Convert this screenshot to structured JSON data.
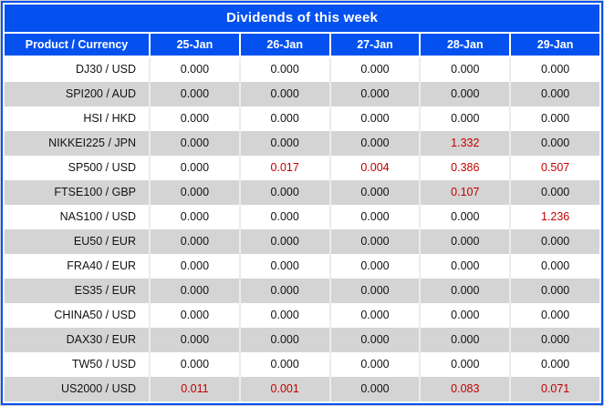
{
  "title": "Dividends of this week",
  "columns": [
    "Product / Currency",
    "25-Jan",
    "26-Jan",
    "27-Jan",
    "28-Jan",
    "29-Jan"
  ],
  "rows": [
    {
      "product": "DJ30 / USD",
      "values": [
        "0.000",
        "0.000",
        "0.000",
        "0.000",
        "0.000"
      ]
    },
    {
      "product": "SPI200 / AUD",
      "values": [
        "0.000",
        "0.000",
        "0.000",
        "0.000",
        "0.000"
      ]
    },
    {
      "product": "HSI / HKD",
      "values": [
        "0.000",
        "0.000",
        "0.000",
        "0.000",
        "0.000"
      ]
    },
    {
      "product": "NIKKEI225 / JPN",
      "values": [
        "0.000",
        "0.000",
        "0.000",
        "1.332",
        "0.000"
      ]
    },
    {
      "product": "SP500 / USD",
      "values": [
        "0.000",
        "0.017",
        "0.004",
        "0.386",
        "0.507"
      ]
    },
    {
      "product": "FTSE100 / GBP",
      "values": [
        "0.000",
        "0.000",
        "0.000",
        "0.107",
        "0.000"
      ]
    },
    {
      "product": "NAS100 / USD",
      "values": [
        "0.000",
        "0.000",
        "0.000",
        "0.000",
        "1.236"
      ]
    },
    {
      "product": "EU50 / EUR",
      "values": [
        "0.000",
        "0.000",
        "0.000",
        "0.000",
        "0.000"
      ]
    },
    {
      "product": "FRA40 / EUR",
      "values": [
        "0.000",
        "0.000",
        "0.000",
        "0.000",
        "0.000"
      ]
    },
    {
      "product": "ES35 / EUR",
      "values": [
        "0.000",
        "0.000",
        "0.000",
        "0.000",
        "0.000"
      ]
    },
    {
      "product": "CHINA50 / USD",
      "values": [
        "0.000",
        "0.000",
        "0.000",
        "0.000",
        "0.000"
      ]
    },
    {
      "product": "DAX30 / EUR",
      "values": [
        "0.000",
        "0.000",
        "0.000",
        "0.000",
        "0.000"
      ]
    },
    {
      "product": "TW50 / USD",
      "values": [
        "0.000",
        "0.000",
        "0.000",
        "0.000",
        "0.000"
      ]
    },
    {
      "product": "US2000 / USD",
      "values": [
        "0.011",
        "0.001",
        "0.000",
        "0.083",
        "0.071"
      ]
    }
  ],
  "colors": {
    "header_blue": "#0551F0",
    "row_alt_gray": "#D4D4D4",
    "value_red": "#C00000",
    "value_black": "#121212",
    "column_gap": "#ECECEC"
  }
}
